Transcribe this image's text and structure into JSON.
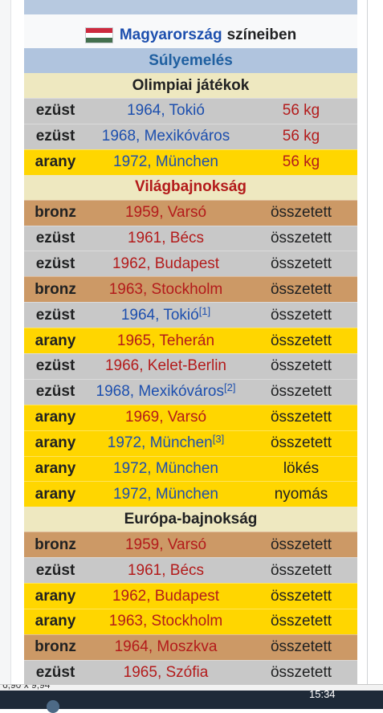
{
  "header": {
    "country_link": "Magyarország",
    "title_rest": "színeiben",
    "flag_colors": [
      "#cd2a3e",
      "#ffffff",
      "#436f4d"
    ]
  },
  "sport": "Súlyemelés",
  "sections": [
    {
      "title": "Olimpiai játékok",
      "title_color": "#202122",
      "rows": [
        {
          "medal": "ezüst",
          "type": "ezust",
          "event": "1964, Tokió",
          "event_color": "blue",
          "note": "",
          "category": "56 kg",
          "cat_color": "red"
        },
        {
          "medal": "ezüst",
          "type": "ezust",
          "event": "1968, Mexikóváros",
          "event_color": "blue",
          "note": "",
          "category": "56 kg",
          "cat_color": "red"
        },
        {
          "medal": "arany",
          "type": "arany",
          "event": "1972, München",
          "event_color": "blue",
          "note": "",
          "category": "56 kg",
          "cat_color": "red"
        }
      ]
    },
    {
      "title": "Világbajnokság",
      "title_color": "#b31b1b",
      "rows": [
        {
          "medal": "bronz",
          "type": "bronz",
          "event": "1959, Varsó",
          "event_color": "red",
          "note": "",
          "category": "összetett",
          "cat_color": "dark"
        },
        {
          "medal": "ezüst",
          "type": "ezust",
          "event": "1961, Bécs",
          "event_color": "red",
          "note": "",
          "category": "összetett",
          "cat_color": "dark"
        },
        {
          "medal": "ezüst",
          "type": "ezust",
          "event": "1962, Budapest",
          "event_color": "red",
          "note": "",
          "category": "összetett",
          "cat_color": "dark"
        },
        {
          "medal": "bronz",
          "type": "bronz",
          "event": "1963, Stockholm",
          "event_color": "red",
          "note": "",
          "category": "összetett",
          "cat_color": "dark"
        },
        {
          "medal": "ezüst",
          "type": "ezust",
          "event": "1964, Tokió",
          "event_color": "blue",
          "note": "[1]",
          "category": "összetett",
          "cat_color": "dark"
        },
        {
          "medal": "arany",
          "type": "arany",
          "event": "1965, Teherán",
          "event_color": "red",
          "note": "",
          "category": "összetett",
          "cat_color": "dark"
        },
        {
          "medal": "ezüst",
          "type": "ezust",
          "event": "1966, Kelet-Berlin",
          "event_color": "red",
          "note": "",
          "category": "összetett",
          "cat_color": "dark"
        },
        {
          "medal": "ezüst",
          "type": "ezust",
          "event": "1968, Mexikóváros",
          "event_color": "blue",
          "note": "[2]",
          "category": "összetett",
          "cat_color": "dark"
        },
        {
          "medal": "arany",
          "type": "arany",
          "event": "1969, Varsó",
          "event_color": "red",
          "note": "",
          "category": "összetett",
          "cat_color": "dark"
        },
        {
          "medal": "arany",
          "type": "arany",
          "event": "1972, München",
          "event_color": "blue",
          "note": "[3]",
          "category": "összetett",
          "cat_color": "dark"
        },
        {
          "medal": "arany",
          "type": "arany",
          "event": "1972, München",
          "event_color": "blue",
          "note": "",
          "category": "lökés",
          "cat_color": "dark"
        },
        {
          "medal": "arany",
          "type": "arany",
          "event": "1972, München",
          "event_color": "blue",
          "note": "",
          "category": "nyomás",
          "cat_color": "dark"
        }
      ]
    },
    {
      "title": "Európa-bajnokság",
      "title_color": "#202122",
      "rows": [
        {
          "medal": "bronz",
          "type": "bronz",
          "event": "1959, Varsó",
          "event_color": "red",
          "note": "",
          "category": "összetett",
          "cat_color": "dark"
        },
        {
          "medal": "ezüst",
          "type": "ezust",
          "event": "1961, Bécs",
          "event_color": "red",
          "note": "",
          "category": "összetett",
          "cat_color": "dark"
        },
        {
          "medal": "arany",
          "type": "arany",
          "event": "1962, Budapest",
          "event_color": "red",
          "note": "",
          "category": "összetett",
          "cat_color": "dark"
        },
        {
          "medal": "arany",
          "type": "arany",
          "event": "1963, Stockholm",
          "event_color": "red",
          "note": "",
          "category": "összetett",
          "cat_color": "dark"
        },
        {
          "medal": "bronz",
          "type": "bronz",
          "event": "1964, Moszkva",
          "event_color": "red",
          "note": "",
          "category": "összetett",
          "cat_color": "dark"
        },
        {
          "medal": "ezüst",
          "type": "ezust",
          "event": "1965, Szófia",
          "event_color": "red",
          "note": "",
          "category": "összetett",
          "cat_color": "dark"
        }
      ]
    }
  ],
  "status_bar": {
    "text": "6,90 x 9,94"
  },
  "taskbar": {
    "clock": "15:34"
  }
}
